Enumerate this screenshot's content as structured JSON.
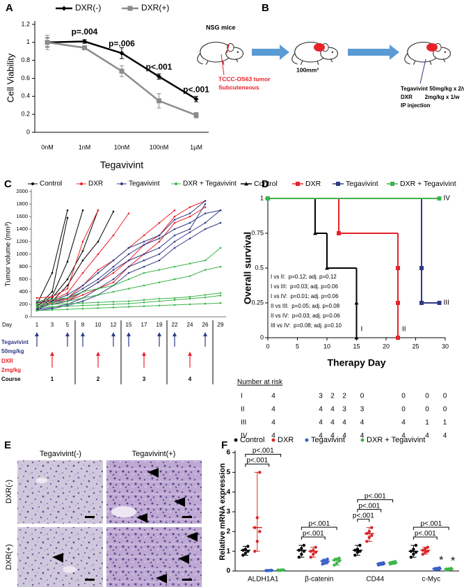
{
  "panel_labels": [
    "A",
    "B",
    "C",
    "D",
    "E",
    "F"
  ],
  "chart_data": [
    {
      "type": "line",
      "categories": [
        "0nM",
        "1nM",
        "10nM",
        "100nM",
        "1µM"
      ],
      "x_label": "Tegavivint",
      "y_label": "Cell Viability",
      "series": [
        {
          "name": "DXR(-)",
          "color": "#000000",
          "marker": "diamond",
          "values": [
            1,
            1.01,
            0.88,
            0.62,
            0.37
          ],
          "errors": [
            0.05,
            0.02,
            0.06,
            0.03,
            0.03
          ]
        },
        {
          "name": "DXR(+)",
          "color": "#8c8c8c",
          "marker": "square",
          "values": [
            1,
            0.94,
            0.68,
            0.35,
            0.19
          ],
          "errors": [
            0.08,
            0.01,
            0.06,
            0.08,
            0.03
          ]
        }
      ],
      "annotations": [
        "p=.004",
        "p=.006",
        "p<.001",
        "p<.001"
      ],
      "ylim": [
        0,
        1.2
      ],
      "yticks": [
        0,
        0.2,
        0.4,
        0.6,
        0.8,
        1,
        1.2
      ]
    },
    {
      "type": "multi_line",
      "x_label": "Day",
      "y_label": "Tumor volume (mm³)",
      "categories": [
        "1",
        "3",
        "5",
        "8",
        "10",
        "12",
        "15",
        "17",
        "19",
        "22",
        "24",
        "26",
        "29"
      ],
      "series": [
        {
          "name": "Control",
          "color": "#000000",
          "values": [
            [
              200,
              700,
              1700,
              null,
              null,
              null,
              null,
              null,
              null,
              null,
              null,
              null,
              null
            ],
            [
              150,
              400,
              1580,
              null,
              null,
              null,
              null,
              null,
              null,
              null,
              null,
              null,
              null
            ],
            [
              180,
              330,
              880,
              1700,
              null,
              null,
              null,
              null,
              null,
              null,
              null,
              null,
              null
            ],
            [
              120,
              300,
              600,
              1050,
              1700,
              null,
              null,
              null,
              null,
              null,
              null,
              null,
              null
            ],
            [
              100,
              250,
              500,
              900,
              1200,
              1680,
              null,
              null,
              null,
              null,
              null,
              null,
              null
            ]
          ]
        },
        {
          "name": "DXR",
          "color": "#e8222a",
          "values": [
            [
              300,
              320,
              450,
              1200,
              1700,
              null,
              null,
              null,
              null,
              null,
              null,
              null,
              null
            ],
            [
              250,
              270,
              380,
              700,
              1000,
              1300,
              1650,
              null,
              null,
              null,
              null,
              null,
              null
            ],
            [
              220,
              250,
              300,
              500,
              750,
              900,
              1100,
              1300,
              1500,
              1700,
              null,
              null,
              null
            ],
            [
              200,
              220,
              280,
              400,
              550,
              700,
              900,
              1150,
              1300,
              1600,
              1750,
              1850,
              null
            ],
            [
              180,
              200,
              250,
              350,
              450,
              550,
              800,
              1000,
              1200,
              1500,
              1600,
              1750,
              null
            ]
          ]
        },
        {
          "name": "Tegavivint",
          "color": "#2e3a87",
          "values": [
            [
              230,
              250,
              350,
              500,
              700,
              900,
              1100,
              1200,
              1300,
              1550,
              1650,
              1850,
              null
            ],
            [
              200,
              230,
              300,
              450,
              600,
              800,
              1000,
              1150,
              1250,
              1400,
              1500,
              1650,
              1700
            ],
            [
              150,
              200,
              250,
              400,
              550,
              750,
              900,
              1000,
              1100,
              1300,
              1400,
              1800,
              null
            ],
            [
              120,
              150,
              200,
              300,
              450,
              600,
              800,
              900,
              1000,
              1200,
              1350,
              1500,
              1700
            ],
            [
              100,
              130,
              180,
              250,
              350,
              500,
              700,
              800,
              900,
              1100,
              1250,
              1400,
              1500
            ]
          ]
        },
        {
          "name": "DXR + Tegavivint",
          "color": "#3cb44b",
          "values": [
            [
              250,
              280,
              300,
              400,
              450,
              500,
              600,
              700,
              750,
              800,
              850,
              900,
              1100
            ],
            [
              200,
              230,
              250,
              300,
              350,
              400,
              450,
              500,
              550,
              600,
              650,
              750,
              800
            ],
            [
              180,
              200,
              210,
              220,
              230,
              240,
              250,
              270,
              290,
              300,
              320,
              350,
              380
            ],
            [
              150,
              160,
              170,
              180,
              190,
              200,
              210,
              230,
              250,
              270,
              290,
              310,
              340
            ],
            [
              100,
              110,
              120,
              130,
              140,
              150,
              160,
              170,
              180,
              190,
              200,
              210,
              220
            ]
          ]
        }
      ],
      "ylim": [
        0,
        2000
      ],
      "yticks": [
        0,
        200,
        400,
        600,
        800,
        1000,
        1200,
        1400,
        1600,
        1800,
        2000
      ],
      "schedule": {
        "tegavivint": [
          "Tegavivint",
          "50mg/kg"
        ],
        "tegavivint_days": [
          1,
          5,
          8,
          12,
          15,
          19,
          22,
          26
        ],
        "dxr": [
          "DXR",
          "2mg/kg"
        ],
        "dxr_days": [
          3,
          10,
          17,
          24
        ],
        "course_label": "Course",
        "courses": [
          "1",
          "2",
          "3",
          "4"
        ]
      }
    },
    {
      "type": "survival",
      "x_label": "Therapy Day",
      "y_label": "Overall survival",
      "series": [
        {
          "name": "Control",
          "label": "I",
          "color": "#000000",
          "marker": "triangle",
          "x": [
            0,
            8,
            10,
            15,
            15
          ],
          "values": [
            1,
            0.75,
            0.5,
            0.25,
            0
          ]
        },
        {
          "name": "DXR",
          "label": "II",
          "color": "#e8222a",
          "marker": "square",
          "x": [
            0,
            12,
            22,
            22,
            22
          ],
          "values": [
            1,
            0.75,
            0.5,
            0.25,
            0
          ]
        },
        {
          "name": "Tegavivint",
          "label": "III",
          "color": "#2e3a87",
          "marker": "square",
          "x": [
            0,
            26,
            26,
            29
          ],
          "values": [
            1,
            0.5,
            0.25,
            0.25
          ]
        },
        {
          "name": "DXR + Tegavivint",
          "label": "IV",
          "color": "#3cb44b",
          "marker": "square",
          "x": [
            0,
            29
          ],
          "values": [
            1,
            1
          ]
        }
      ],
      "p_values": [
        "I vs II:  p=0.12; adj. p=0.12",
        "I vs III:  p=0.03; adj. p=0.06",
        "I vs IV:  p=0.01; adj. p=0.06",
        "II vs III:  p=0.05; adj. p=0.08",
        "II vs IV:  p=0.03; adj. p=0.06",
        "III vs IV:  p=0.08; adj. p=0.10"
      ],
      "xlim": [
        0,
        30
      ],
      "xticks": [
        0,
        5,
        10,
        15,
        20,
        25,
        30
      ],
      "ylim": [
        0,
        1
      ],
      "yticks": [
        0,
        0.25,
        0.5,
        0.75,
        1
      ],
      "risk_table": {
        "title": "Number at risk",
        "times": [
          0,
          8,
          10,
          12,
          15,
          22,
          26,
          29
        ],
        "rows": [
          {
            "label": "I",
            "values": [
              "4",
              "3",
              "2",
              "2",
              "0",
              "0",
              "0",
              "0"
            ]
          },
          {
            "label": "II",
            "values": [
              "4",
              "4",
              "4",
              "3",
              "3",
              "0",
              "0",
              "0"
            ]
          },
          {
            "label": "III",
            "values": [
              "4",
              "4",
              "4",
              "4",
              "4",
              "4",
              "1",
              "1"
            ]
          },
          {
            "label": "IV",
            "values": [
              "4",
              "4",
              "4",
              "4",
              "4",
              "4",
              "4",
              "4"
            ]
          }
        ]
      }
    },
    {
      "type": "dot",
      "y_label": "Relative mRNA expression",
      "categories": [
        "ALDH1A1",
        "β-catenin",
        "CD44",
        "c-Myc"
      ],
      "series": [
        {
          "name": "Control",
          "color": "#000000",
          "values": [
            [
              0.8,
              0.9,
              1.0,
              1.05,
              1.1,
              1.25
            ],
            [
              0.7,
              0.85,
              1.0,
              1.05,
              1.15,
              1.3
            ],
            [
              0.8,
              0.95,
              1.0,
              1.05,
              1.1,
              1.3
            ],
            [
              0.7,
              0.85,
              0.95,
              1.0,
              1.1,
              1.3
            ]
          ]
        },
        {
          "name": "DXR",
          "color": "#d62728",
          "values": [
            [
              1.0,
              1.5,
              2.0,
              2.2,
              2.7,
              5.0
            ],
            [
              0.7,
              0.85,
              0.95,
              1.0,
              1.05,
              1.2
            ],
            [
              1.5,
              1.7,
              1.8,
              1.9,
              2.0,
              2.2
            ],
            [
              0.85,
              0.95,
              1.0,
              1.05,
              1.15,
              1.2
            ]
          ]
        },
        {
          "name": "Tegavivint",
          "color": "#3a5fc8",
          "values": [
            [
              0.01,
              0.02,
              0.02,
              0.03,
              0.03,
              0.04
            ],
            [
              0.35,
              0.4,
              0.45,
              0.5,
              0.55,
              0.6
            ],
            [
              0.3,
              0.33,
              0.35,
              0.37,
              0.4,
              0.42
            ],
            [
              0.05,
              0.08,
              0.1,
              0.12,
              0.14,
              0.16
            ]
          ]
        },
        {
          "name": "DXR + Tegavivint",
          "color": "#3cb44b",
          "values": [
            [
              0.02,
              0.03,
              0.04,
              0.05,
              0.05,
              0.06
            ],
            [
              0.3,
              0.4,
              0.5,
              0.55,
              0.6,
              0.65
            ],
            [
              0.35,
              0.38,
              0.4,
              0.42,
              0.45,
              0.48
            ],
            [
              0.05,
              0.07,
              0.08,
              0.1,
              0.11,
              0.13
            ]
          ]
        }
      ],
      "brackets": [
        [
          "p<.001",
          "p<.001"
        ],
        [
          "p<.001",
          "p<.001"
        ],
        [
          "p<.001",
          "p<.001",
          "p<.001"
        ],
        [
          "p<.001",
          "p<.001"
        ]
      ],
      "stars": [
        "*",
        "*"
      ],
      "ylim": [
        0,
        6
      ],
      "yticks": [
        0,
        1,
        2,
        3,
        4,
        5,
        6
      ]
    }
  ],
  "diagram": {
    "mice": "NSG mice",
    "tumor": [
      "TCCC-OS63 tumor",
      "Subcuteneous"
    ],
    "size": "100mm³",
    "treatment": [
      "Tegavivint 50mg/kg x 2/w",
      "DXR        2mg/kg x 1/w",
      "IP injection"
    ]
  },
  "histology": {
    "columns": [
      "Tegavivint(-)",
      "Tegavivint(+)"
    ],
    "rows": [
      "DXR(-)",
      "DXR(+)"
    ]
  }
}
